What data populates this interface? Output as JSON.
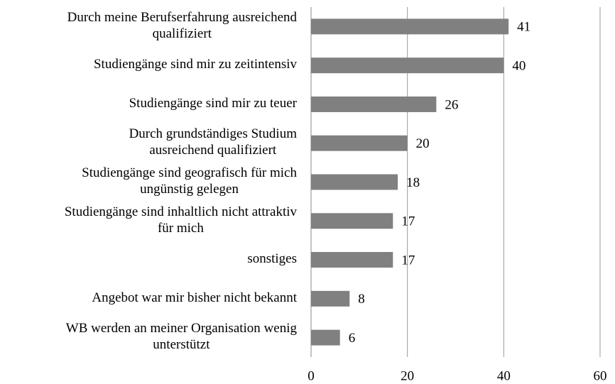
{
  "chart_data": {
    "type": "barh",
    "categories": [
      "Durch meine Berufserfahrung ausreichend\nqualifiziert",
      "Studiengänge sind mir zu zeitintensiv",
      "Studiengänge sind mir zu teuer",
      "Durch grundständiges Studium\nausreichend qualifiziert",
      "Studiengänge sind geografisch für mich\nungünstig gelegen",
      "Studiengänge sind inhaltlich nicht attraktiv\nfür mich",
      "sonstiges",
      "Angebot war mir bisher nicht bekannt",
      "WB werden an meiner Organisation wenig\nunterstützt"
    ],
    "values": [
      41,
      40,
      26,
      20,
      18,
      17,
      17,
      8,
      6
    ],
    "color": "#808080",
    "xlim": [
      0,
      60
    ],
    "xticks": [
      0,
      20,
      40,
      60
    ],
    "grid": true
  }
}
